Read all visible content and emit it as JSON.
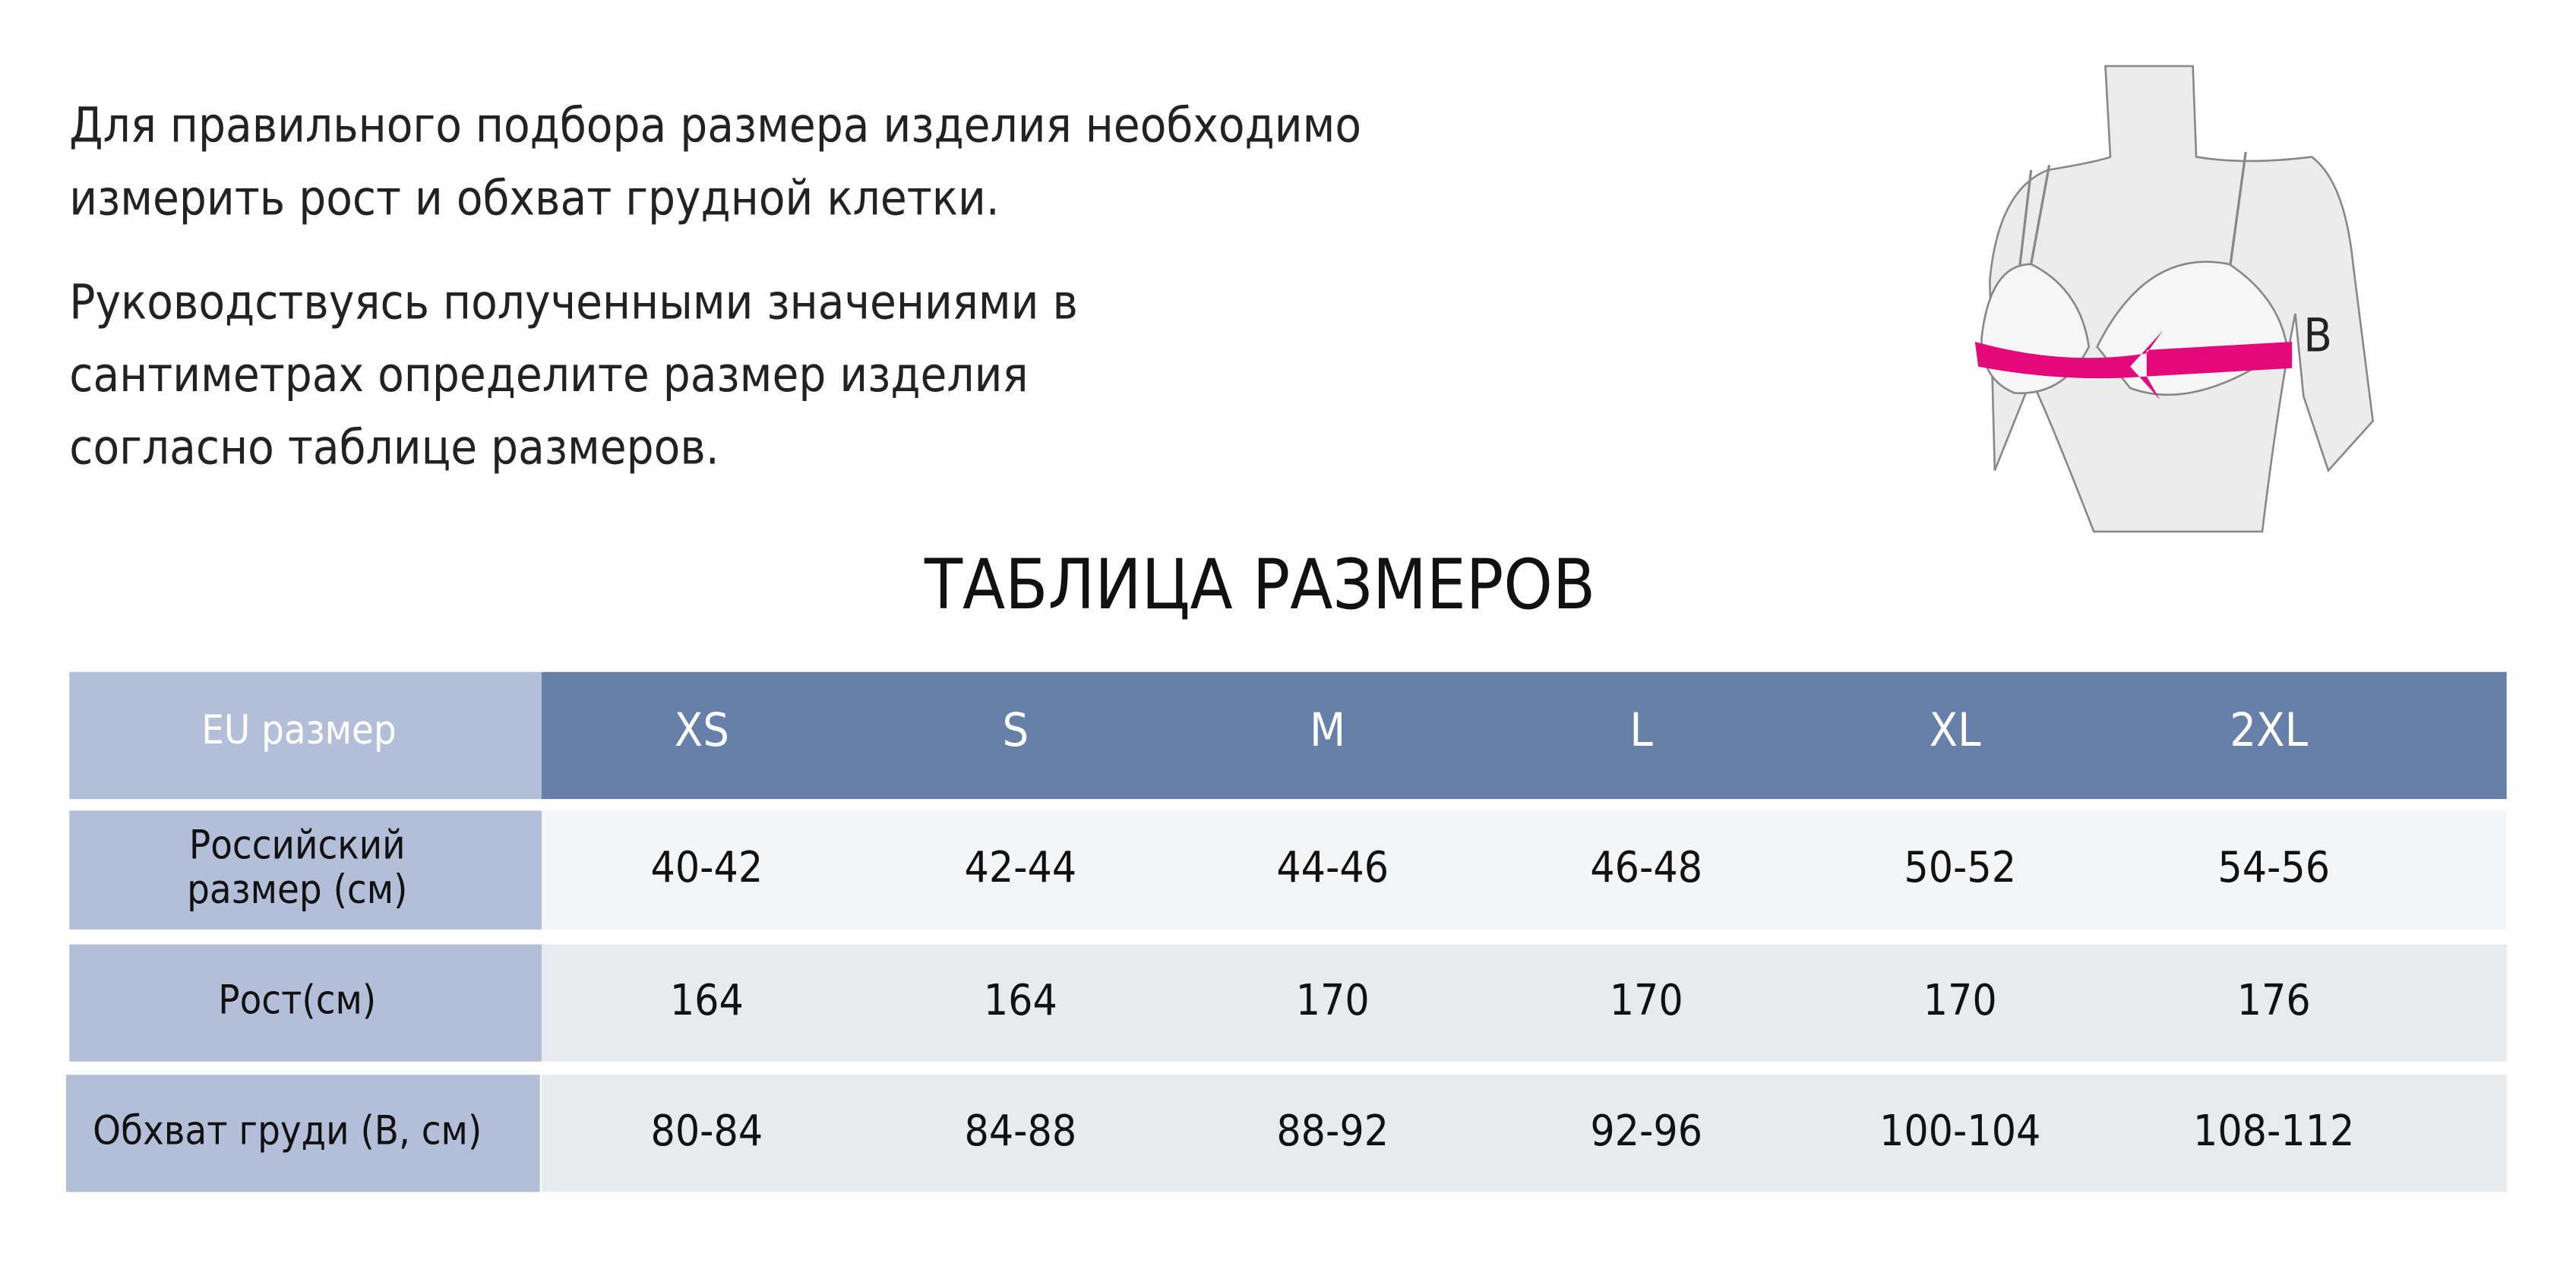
{
  "intro": {
    "paragraphs": [
      [
        "Для правильного подбора размера изделия необходимо",
        "измерить рост и обхват грудной клетки."
      ],
      [
        "Руководствуясь полученными значениями в",
        "сантиметрах определите размер изделия",
        "согласно таблице размеров."
      ]
    ]
  },
  "figure": {
    "label": "B"
  },
  "table": {
    "title": "ТАБЛИЦА РАЗМЕРОВ",
    "header": [
      "EU размер",
      "XS",
      "S",
      "M",
      "L",
      "XL",
      "2XL"
    ],
    "rows": [
      [
        [
          "Российский",
          "размер (см)"
        ],
        "40-42",
        "42-44",
        "44-46",
        "46-48",
        "50-52",
        "54-56"
      ],
      [
        [
          "Рост(см)"
        ],
        "164",
        "164",
        "170",
        "170",
        "170",
        "176"
      ],
      [
        [
          "Обхват груди (B, см)"
        ],
        "80-84",
        "84-88",
        "88-92",
        "92-96",
        "100-104",
        "108-112"
      ]
    ]
  }
}
